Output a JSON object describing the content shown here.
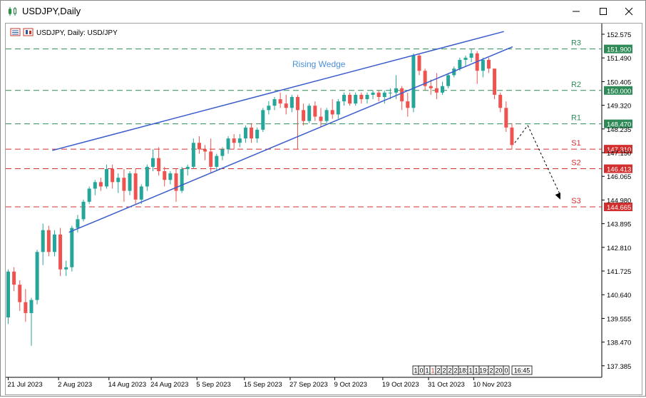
{
  "window": {
    "title": "USDJPY,Daily",
    "title_icon": "candlestick-chart-icon"
  },
  "chart_header": {
    "label": "USDJPY, Daily:  USD/JPY"
  },
  "annotations": {
    "wedge_label": "Rising Wedge",
    "wedge_color": "#3a5ccc",
    "wedge_label_color": "#4a90d9"
  },
  "levels": [
    {
      "name": "R3",
      "price": 151.9,
      "price_label": "151.900",
      "kind": "resistance"
    },
    {
      "name": "R2",
      "price": 150.0,
      "price_label": "150.000",
      "kind": "resistance"
    },
    {
      "name": "R1",
      "price": 148.47,
      "price_label": "148.470",
      "kind": "resistance"
    },
    {
      "name": "S1",
      "price": 147.31,
      "price_label": "147.310",
      "kind": "support"
    },
    {
      "name": "S2",
      "price": 146.413,
      "price_label": "146.413",
      "kind": "support"
    },
    {
      "name": "S3",
      "price": 144.665,
      "price_label": "144.665",
      "kind": "support"
    }
  ],
  "colors": {
    "bull": "#26a69a",
    "bear": "#ef5350",
    "resistance": "#2e8b57",
    "support": "#d32f2f",
    "resistance_label_bg": "#ffffff",
    "support_label_bg": "#ffffff"
  },
  "price_axis_ticks": [
    "152.575",
    "151.490",
    "150.405",
    "149.320",
    "148.235",
    "147.150",
    "146.065",
    "144.980",
    "143.895",
    "142.810",
    "141.725",
    "140.640",
    "139.555",
    "138.470",
    "137.385"
  ],
  "date_axis_ticks": [
    "21 Jul 2023",
    "2 Aug 2023",
    "14 Aug 2023",
    "24 Aug 2023",
    "5 Sep 2023",
    "15 Sep 2023",
    "27 Sep 2023",
    "9 Oct 2023",
    "19 Oct 2023",
    "31 Oct 2023",
    "10 Nov 2023"
  ],
  "scale_strip": {
    "cells": [
      "1",
      "0",
      "1",
      "1",
      "2",
      "2",
      "2",
      "2",
      "18:",
      "1",
      "1",
      "19:",
      "2",
      "20",
      "0"
    ],
    "time": "16:45"
  },
  "chart_data": {
    "type": "candlestick",
    "symbol": "USDJPY",
    "timeframe": "Daily",
    "ylim": [
      136.9,
      153.2
    ],
    "candles": [
      [
        139.6,
        141.8,
        139.3,
        141.7
      ],
      [
        141.7,
        141.9,
        140.8,
        141.1
      ],
      [
        141.1,
        141.3,
        139.9,
        140.3
      ],
      [
        140.3,
        140.9,
        139.4,
        139.8
      ],
      [
        139.8,
        140.5,
        138.3,
        140.4
      ],
      [
        140.4,
        142.7,
        140.2,
        142.6
      ],
      [
        142.6,
        143.9,
        142.0,
        143.6
      ],
      [
        143.6,
        143.8,
        142.4,
        142.6
      ],
      [
        142.6,
        143.6,
        142.4,
        143.4
      ],
      [
        143.4,
        143.7,
        141.5,
        141.8
      ],
      [
        141.8,
        142.2,
        141.5,
        141.9
      ],
      [
        141.9,
        143.8,
        141.7,
        143.7
      ],
      [
        143.7,
        144.3,
        143.5,
        144.1
      ],
      [
        144.1,
        145.0,
        144.0,
        144.9
      ],
      [
        144.9,
        145.6,
        144.8,
        145.5
      ],
      [
        145.5,
        145.9,
        145.2,
        145.8
      ],
      [
        145.8,
        146.0,
        145.4,
        145.6
      ],
      [
        145.6,
        146.6,
        145.5,
        146.4
      ],
      [
        146.4,
        146.6,
        145.5,
        145.8
      ],
      [
        145.8,
        146.2,
        145.3,
        146.0
      ],
      [
        146.0,
        146.4,
        144.9,
        145.4
      ],
      [
        145.4,
        146.3,
        145.2,
        146.2
      ],
      [
        146.2,
        146.4,
        144.8,
        145.0
      ],
      [
        145.0,
        145.7,
        144.8,
        145.6
      ],
      [
        145.6,
        146.6,
        145.4,
        146.5
      ],
      [
        146.5,
        147.3,
        146.3,
        146.9
      ],
      [
        146.9,
        147.4,
        146.1,
        146.3
      ],
      [
        146.3,
        146.5,
        145.6,
        145.9
      ],
      [
        145.9,
        146.3,
        145.7,
        146.2
      ],
      [
        146.2,
        146.4,
        144.9,
        145.4
      ],
      [
        145.4,
        146.5,
        145.3,
        146.4
      ],
      [
        146.4,
        146.6,
        146.1,
        146.5
      ],
      [
        146.5,
        147.8,
        146.4,
        147.6
      ],
      [
        147.6,
        147.9,
        147.1,
        147.3
      ],
      [
        147.3,
        147.5,
        146.8,
        147.2
      ],
      [
        147.2,
        147.8,
        146.2,
        146.5
      ],
      [
        146.5,
        147.1,
        146.3,
        147.0
      ],
      [
        147.0,
        147.4,
        146.8,
        147.3
      ],
      [
        147.3,
        147.9,
        147.1,
        147.8
      ],
      [
        147.8,
        148.0,
        147.3,
        147.6
      ],
      [
        147.6,
        148.0,
        147.4,
        147.8
      ],
      [
        147.8,
        148.4,
        147.6,
        148.3
      ],
      [
        148.3,
        148.5,
        147.6,
        147.8
      ],
      [
        147.8,
        148.3,
        147.6,
        148.2
      ],
      [
        148.2,
        149.2,
        148.1,
        149.1
      ],
      [
        149.1,
        149.5,
        148.9,
        149.3
      ],
      [
        149.3,
        149.7,
        149.1,
        149.6
      ],
      [
        149.6,
        149.9,
        149.2,
        149.4
      ],
      [
        149.4,
        149.8,
        148.9,
        149.2
      ],
      [
        149.2,
        149.8,
        149.0,
        149.7
      ],
      [
        149.7,
        149.8,
        147.3,
        149.1
      ],
      [
        149.1,
        149.4,
        148.4,
        148.6
      ],
      [
        148.6,
        149.4,
        148.5,
        149.3
      ],
      [
        149.3,
        149.5,
        148.6,
        148.8
      ],
      [
        148.8,
        149.2,
        148.3,
        148.6
      ],
      [
        148.6,
        149.2,
        148.5,
        149.1
      ],
      [
        149.1,
        149.6,
        148.7,
        148.9
      ],
      [
        148.9,
        149.6,
        148.7,
        149.5
      ],
      [
        149.5,
        149.9,
        149.3,
        149.8
      ],
      [
        149.8,
        149.9,
        149.3,
        149.4
      ],
      [
        149.4,
        149.9,
        149.3,
        149.8
      ],
      [
        149.8,
        149.9,
        149.4,
        149.6
      ],
      [
        149.6,
        149.9,
        149.4,
        149.8
      ],
      [
        149.8,
        150.0,
        149.6,
        149.9
      ],
      [
        149.9,
        150.0,
        149.5,
        149.7
      ],
      [
        149.7,
        150.0,
        149.4,
        149.9
      ],
      [
        149.9,
        150.1,
        149.6,
        149.9
      ],
      [
        149.9,
        150.7,
        149.6,
        150.1
      ],
      [
        150.1,
        150.2,
        149.1,
        149.5
      ],
      [
        149.5,
        149.9,
        148.8,
        149.2
      ],
      [
        149.2,
        151.7,
        149.0,
        151.6
      ],
      [
        151.6,
        151.7,
        150.7,
        150.9
      ],
      [
        150.9,
        151.0,
        150.0,
        150.2
      ],
      [
        150.2,
        150.5,
        149.8,
        150.1
      ],
      [
        150.1,
        150.8,
        149.6,
        149.9
      ],
      [
        149.9,
        150.4,
        149.8,
        150.2
      ],
      [
        150.2,
        150.8,
        150.1,
        150.7
      ],
      [
        150.7,
        151.1,
        150.6,
        151.0
      ],
      [
        151.0,
        151.5,
        150.9,
        151.4
      ],
      [
        151.4,
        151.6,
        151.1,
        151.5
      ],
      [
        151.5,
        151.9,
        151.3,
        151.7
      ],
      [
        151.7,
        151.8,
        150.3,
        150.9
      ],
      [
        150.9,
        151.5,
        150.6,
        151.4
      ],
      [
        151.4,
        151.5,
        150.8,
        151.0
      ],
      [
        151.0,
        151.0,
        149.6,
        149.8
      ],
      [
        149.8,
        149.9,
        149.0,
        149.2
      ],
      [
        149.2,
        149.5,
        148.1,
        148.3
      ],
      [
        148.3,
        148.5,
        147.3,
        147.5
      ]
    ],
    "levels": [
      {
        "name": "R3",
        "value": 151.9
      },
      {
        "name": "R2",
        "value": 150.0
      },
      {
        "name": "R1",
        "value": 148.47
      },
      {
        "name": "S1",
        "value": 147.31
      },
      {
        "name": "S2",
        "value": 146.413
      },
      {
        "name": "S3",
        "value": 144.665
      }
    ],
    "rising_wedge": {
      "upper_line": [
        [
          7,
          147.25
        ],
        [
          42,
          149.9
        ],
        [
          85,
          152.7
        ]
      ],
      "lower_line": [
        [
          10,
          143.5
        ],
        [
          31,
          144.0
        ],
        [
          87,
          152.0
        ]
      ],
      "label": "Rising Wedge"
    },
    "projection_path": [
      [
        87,
        147.6
      ],
      [
        89,
        148.4
      ],
      [
        95,
        145.0
      ]
    ]
  }
}
